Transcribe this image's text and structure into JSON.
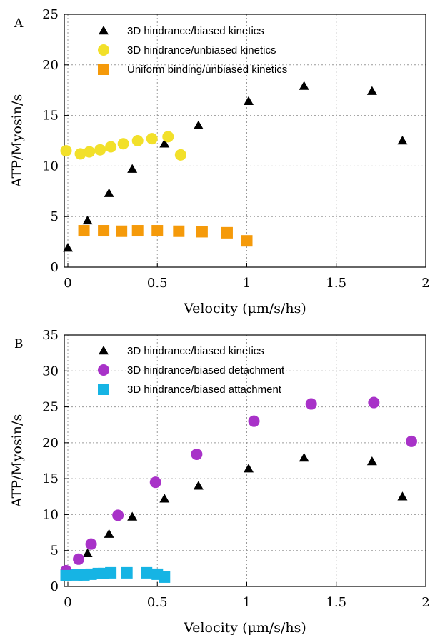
{
  "chart_data": [
    {
      "type": "scatter",
      "panel_label": "A",
      "xlabel": "Velocity (μm/s/hs)",
      "ylabel": "ATP/Myosin/s",
      "xlim": [
        -0.02,
        2.0
      ],
      "ylim": [
        0,
        25
      ],
      "xticks": [
        {
          "v": 0,
          "label": "0"
        },
        {
          "v": 0.5,
          "label": "0.5"
        },
        {
          "v": 1,
          "label": "1"
        },
        {
          "v": 1.5,
          "label": "1.5"
        },
        {
          "v": 2,
          "label": "2"
        }
      ],
      "yticks": [
        {
          "v": 0,
          "label": "0"
        },
        {
          "v": 5,
          "label": "5"
        },
        {
          "v": 10,
          "label": "10"
        },
        {
          "v": 15,
          "label": "15"
        },
        {
          "v": 20,
          "label": "20"
        },
        {
          "v": 25,
          "label": "25"
        }
      ],
      "grid": "dotted",
      "legend_position": "top-left",
      "series": [
        {
          "name": "3D hindrance/biased kinetics",
          "marker": "triangle",
          "color": "#000000",
          "points": [
            [
              0.0,
              1.9
            ],
            [
              0.11,
              4.6
            ],
            [
              0.23,
              7.3
            ],
            [
              0.36,
              9.7
            ],
            [
              0.54,
              12.2
            ],
            [
              0.73,
              14.0
            ],
            [
              1.01,
              16.4
            ],
            [
              1.32,
              17.9
            ],
            [
              1.7,
              17.4
            ],
            [
              1.87,
              12.5
            ]
          ]
        },
        {
          "name": "3D hindrance/unbiased kinetics",
          "marker": "circle",
          "color": "#f2e02a",
          "points": [
            [
              -0.01,
              11.5
            ],
            [
              0.07,
              11.2
            ],
            [
              0.12,
              11.4
            ],
            [
              0.18,
              11.6
            ],
            [
              0.24,
              11.9
            ],
            [
              0.31,
              12.2
            ],
            [
              0.39,
              12.5
            ],
            [
              0.47,
              12.7
            ],
            [
              0.56,
              12.9
            ],
            [
              0.63,
              11.1
            ]
          ]
        },
        {
          "name": "Uniform binding/unbiased kinetics",
          "marker": "square",
          "color": "#f59a0a",
          "points": [
            [
              0.09,
              3.6
            ],
            [
              0.2,
              3.6
            ],
            [
              0.3,
              3.55
            ],
            [
              0.39,
              3.6
            ],
            [
              0.5,
              3.6
            ],
            [
              0.62,
              3.55
            ],
            [
              0.75,
              3.5
            ],
            [
              0.89,
              3.4
            ],
            [
              1.0,
              2.6
            ]
          ]
        }
      ]
    },
    {
      "type": "scatter",
      "panel_label": "B",
      "xlabel": "Velocity (μm/s/hs)",
      "ylabel": "ATP/Myosin/s",
      "xlim": [
        -0.02,
        2.0
      ],
      "ylim": [
        0,
        35
      ],
      "xticks": [
        {
          "v": 0,
          "label": "0"
        },
        {
          "v": 0.5,
          "label": "0.5"
        },
        {
          "v": 1,
          "label": "1"
        },
        {
          "v": 1.5,
          "label": "1.5"
        },
        {
          "v": 2,
          "label": "2"
        }
      ],
      "yticks": [
        {
          "v": 0,
          "label": "0"
        },
        {
          "v": 5,
          "label": "5"
        },
        {
          "v": 10,
          "label": "10"
        },
        {
          "v": 15,
          "label": "15"
        },
        {
          "v": 20,
          "label": "20"
        },
        {
          "v": 25,
          "label": "25"
        },
        {
          "v": 30,
          "label": "30"
        },
        {
          "v": 35,
          "label": "35"
        }
      ],
      "grid": "dotted",
      "legend_position": "top-left",
      "series": [
        {
          "name": "3D hindrance/biased kinetics",
          "marker": "triangle",
          "color": "#000000",
          "points": [
            [
              0.0,
              1.9
            ],
            [
              0.11,
              4.6
            ],
            [
              0.23,
              7.3
            ],
            [
              0.36,
              9.7
            ],
            [
              0.54,
              12.2
            ],
            [
              0.73,
              14.0
            ],
            [
              1.01,
              16.4
            ],
            [
              1.32,
              17.9
            ],
            [
              1.7,
              17.4
            ],
            [
              1.87,
              12.5
            ]
          ]
        },
        {
          "name": "3D hindrance/biased detachment",
          "marker": "circle",
          "color": "#a832c8",
          "points": [
            [
              -0.01,
              2.2
            ],
            [
              0.06,
              3.8
            ],
            [
              0.13,
              5.9
            ],
            [
              0.28,
              9.9
            ],
            [
              0.49,
              14.5
            ],
            [
              0.72,
              18.4
            ],
            [
              1.04,
              23.0
            ],
            [
              1.36,
              25.4
            ],
            [
              1.71,
              25.6
            ],
            [
              1.92,
              20.2
            ]
          ]
        },
        {
          "name": "3D hindrance/biased attachment",
          "marker": "square",
          "color": "#16b4e4",
          "points": [
            [
              -0.01,
              1.5
            ],
            [
              0.05,
              1.6
            ],
            [
              0.09,
              1.6
            ],
            [
              0.13,
              1.7
            ],
            [
              0.17,
              1.8
            ],
            [
              0.2,
              1.8
            ],
            [
              0.24,
              1.9
            ],
            [
              0.33,
              1.9
            ],
            [
              0.44,
              1.9
            ],
            [
              0.5,
              1.7
            ],
            [
              0.54,
              1.3
            ]
          ]
        }
      ]
    }
  ]
}
